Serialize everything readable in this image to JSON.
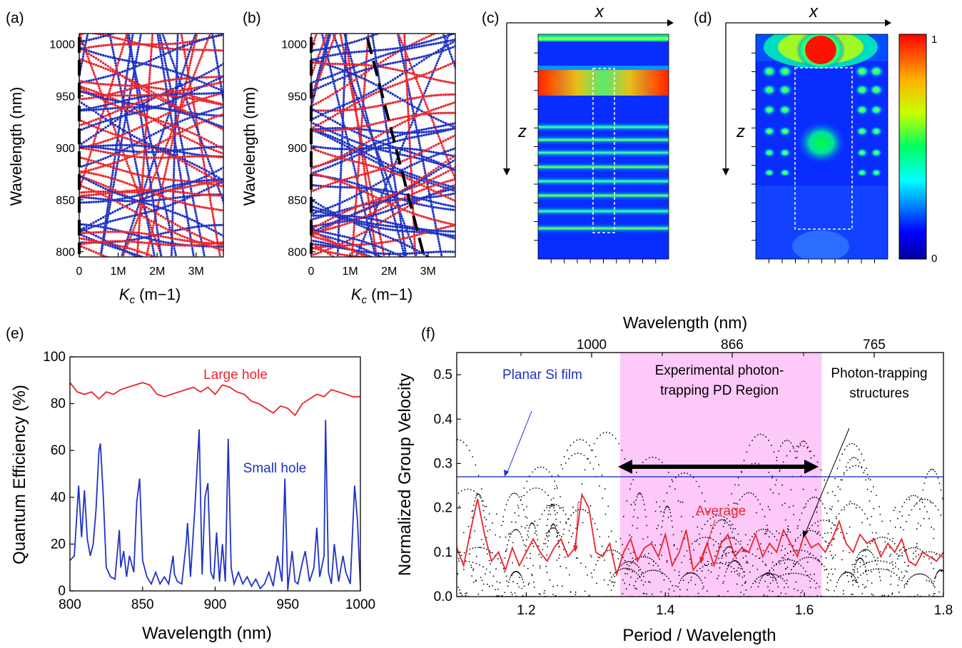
{
  "panels": {
    "a": {
      "tag": "(a)"
    },
    "b": {
      "tag": "(b)"
    },
    "c": {
      "tag": "(c)",
      "x_axis": "x",
      "z_axis": "z"
    },
    "d": {
      "tag": "(d)",
      "x_axis": "x",
      "z_axis": "z"
    },
    "e": {
      "tag": "(e)"
    },
    "f": {
      "tag": "(f)"
    }
  },
  "colorbar": {
    "max_label": "1",
    "min_label": "0"
  },
  "colors": {
    "red": "#e8262d",
    "blue": "#1f33c4",
    "magenta_region": "#fdc9f8",
    "black": "#000000"
  },
  "chart_data": [
    {
      "id": "a",
      "type": "scatter",
      "ylabel": "Wavelength (nm)",
      "xlabel_main": "K",
      "xlabel_sub": "c",
      "xlabel_unit": " (m−1)",
      "xlim": [
        0,
        3700000
      ],
      "ylim": [
        795,
        1010
      ],
      "xticks": [
        0,
        1000000,
        2000000,
        3000000
      ],
      "xtick_labels": [
        "0",
        "1M",
        "2M",
        "3M"
      ],
      "yticks": [
        800,
        850,
        900,
        950,
        1000
      ],
      "ytick_labels": [
        "800",
        "850",
        "900",
        "950",
        "1000"
      ],
      "series": [
        {
          "color": "red",
          "description_values": "dense band-structure dots (TE)"
        },
        {
          "color": "blue",
          "description_values": "dense band-structure dots (TM)"
        }
      ],
      "light_line": {
        "style": "dashed",
        "x_start": 0,
        "x_end": 0
      }
    },
    {
      "id": "b",
      "type": "scatter",
      "ylabel": "Wavelength (nm)",
      "xlabel_main": "K",
      "xlabel_sub": "c",
      "xlabel_unit": " (m−1)",
      "xlim": [
        0,
        3700000
      ],
      "ylim": [
        795,
        1010
      ],
      "xticks": [
        0,
        1000000,
        2000000,
        3000000
      ],
      "xtick_labels": [
        "0",
        "1M",
        "2M",
        "3M"
      ],
      "yticks": [
        800,
        850,
        900,
        950,
        1000
      ],
      "ytick_labels": [
        "800",
        "850",
        "900",
        "950",
        "1000"
      ],
      "series": [
        {
          "color": "red",
          "description_values": "dense band-structure dots"
        },
        {
          "color": "blue",
          "description_values": "dense band-structure dots"
        }
      ],
      "light_line": {
        "style": "dashed",
        "points": [
          [
            1450000,
            1005
          ],
          [
            2900000,
            795
          ]
        ]
      }
    },
    {
      "id": "e",
      "type": "line",
      "xlabel": "Wavelength (nm)",
      "ylabel": "Quantum Efficiency (%)",
      "xlim": [
        800,
        1000
      ],
      "ylim": [
        0,
        100
      ],
      "xticks": [
        800,
        850,
        900,
        950,
        1000
      ],
      "xtick_labels": [
        "800",
        "850",
        "900",
        "950",
        "1000"
      ],
      "yticks": [
        0,
        20,
        40,
        60,
        80,
        100
      ],
      "ytick_labels": [
        "0",
        "20",
        "40",
        "60",
        "80",
        "100"
      ],
      "series": [
        {
          "name": "Large hole",
          "color": "red",
          "x": [
            800,
            805,
            810,
            815,
            820,
            825,
            830,
            835,
            840,
            845,
            850,
            855,
            860,
            865,
            870,
            875,
            880,
            885,
            890,
            895,
            900,
            905,
            910,
            915,
            920,
            925,
            930,
            935,
            940,
            945,
            950,
            955,
            960,
            965,
            970,
            975,
            980,
            985,
            990,
            995,
            1000
          ],
          "values": [
            89,
            85,
            84,
            85,
            82,
            85,
            84,
            86,
            87,
            88,
            89,
            88,
            84,
            83,
            84,
            85,
            86,
            87,
            85,
            87,
            84,
            88,
            87,
            85,
            84,
            81,
            80,
            78,
            76,
            79,
            78,
            75,
            80,
            82,
            84,
            83,
            86,
            85,
            84,
            83,
            83
          ]
        },
        {
          "name": "Small hole",
          "color": "blue",
          "x": [
            800,
            803,
            806,
            808,
            810,
            812,
            814,
            816,
            818,
            820,
            821,
            823,
            825,
            828,
            831,
            834,
            835,
            837,
            839,
            841,
            844,
            846,
            848,
            850,
            853,
            856,
            859,
            862,
            865,
            868,
            871,
            872,
            874,
            877,
            880,
            881,
            883,
            886,
            889,
            891,
            893,
            895,
            897,
            899,
            901,
            903,
            905,
            907,
            909,
            911,
            913,
            916,
            919,
            922,
            925,
            928,
            931,
            934,
            937,
            940,
            943,
            946,
            948,
            950,
            953,
            955,
            957,
            960,
            962,
            965,
            968,
            970,
            972,
            975,
            976,
            978,
            980,
            982,
            985,
            988,
            990,
            993,
            996,
            998,
            1000
          ],
          "values": [
            13,
            15,
            45,
            23,
            43,
            22,
            15,
            20,
            35,
            60,
            63,
            40,
            10,
            6,
            5,
            26,
            10,
            17,
            6,
            15,
            8,
            38,
            48,
            13,
            6,
            3,
            8,
            3,
            6,
            3,
            15,
            7,
            4,
            3,
            20,
            29,
            6,
            35,
            69,
            7,
            40,
            46,
            8,
            5,
            25,
            4,
            20,
            4,
            65,
            10,
            3,
            8,
            3,
            6,
            2,
            5,
            1,
            3,
            8,
            2,
            15,
            4,
            48,
            1,
            17,
            4,
            3,
            12,
            17,
            4,
            10,
            27,
            6,
            15,
            73,
            8,
            3,
            20,
            4,
            15,
            8,
            3,
            45,
            30,
            2
          ]
        }
      ]
    },
    {
      "id": "f",
      "type": "scatter",
      "xlabel": "Period / Wavelength",
      "ylabel": "Normalized Group Velocity",
      "top_xlabel": "Wavelength (nm)",
      "top_xticks": [
        1000,
        866,
        765
      ],
      "top_xtick_labels": [
        "1000",
        "866",
        "765"
      ],
      "xlim": [
        1.1,
        1.8
      ],
      "ylim": [
        0.0,
        0.55
      ],
      "xticks": [
        1.2,
        1.4,
        1.6,
        1.8
      ],
      "xtick_labels": [
        "1.2",
        "1.4",
        "1.6",
        "1.8"
      ],
      "yticks": [
        0.0,
        0.1,
        0.2,
        0.3,
        0.4,
        0.5
      ],
      "ytick_labels": [
        "0.0",
        "0.1",
        "0.2",
        "0.3",
        "0.4",
        "0.5"
      ],
      "shaded_region": {
        "x": [
          1.335,
          1.625
        ],
        "label_line1": "Experimental photon-",
        "label_line2": "trapping PD Region"
      },
      "planar_line": {
        "y": 0.27,
        "label": "Planar Si film",
        "color": "blue"
      },
      "annotation_average": "Average",
      "annotation_structures_line1": "Photon-trapping",
      "annotation_structures_line2": "structures",
      "series": [
        {
          "name": "Average",
          "color": "red",
          "x": [
            1.1,
            1.11,
            1.12,
            1.13,
            1.14,
            1.15,
            1.16,
            1.17,
            1.18,
            1.19,
            1.2,
            1.21,
            1.22,
            1.23,
            1.24,
            1.25,
            1.26,
            1.27,
            1.28,
            1.29,
            1.3,
            1.31,
            1.32,
            1.33,
            1.34,
            1.35,
            1.36,
            1.37,
            1.38,
            1.39,
            1.4,
            1.41,
            1.42,
            1.43,
            1.44,
            1.45,
            1.46,
            1.47,
            1.48,
            1.49,
            1.5,
            1.51,
            1.52,
            1.53,
            1.54,
            1.55,
            1.56,
            1.57,
            1.58,
            1.59,
            1.6,
            1.61,
            1.62,
            1.63,
            1.64,
            1.65,
            1.66,
            1.67,
            1.68,
            1.69,
            1.7,
            1.71,
            1.72,
            1.73,
            1.74,
            1.75,
            1.76,
            1.77,
            1.78,
            1.79,
            1.8
          ],
          "values": [
            0.11,
            0.07,
            0.15,
            0.22,
            0.14,
            0.08,
            0.1,
            0.06,
            0.11,
            0.07,
            0.1,
            0.13,
            0.1,
            0.08,
            0.11,
            0.13,
            0.09,
            0.11,
            0.23,
            0.2,
            0.1,
            0.09,
            0.12,
            0.05,
            0.1,
            0.13,
            0.08,
            0.11,
            0.12,
            0.09,
            0.14,
            0.07,
            0.1,
            0.15,
            0.06,
            0.08,
            0.12,
            0.07,
            0.12,
            0.14,
            0.09,
            0.11,
            0.1,
            0.14,
            0.09,
            0.12,
            0.1,
            0.15,
            0.12,
            0.09,
            0.14,
            0.11,
            0.12,
            0.1,
            0.13,
            0.17,
            0.12,
            0.1,
            0.14,
            0.12,
            0.13,
            0.09,
            0.12,
            0.1,
            0.13,
            0.08,
            0.07,
            0.1,
            0.09,
            0.08,
            0.1
          ]
        },
        {
          "name": "",
          "color": "black",
          "description_values": "dispersion band dots"
        }
      ]
    }
  ]
}
